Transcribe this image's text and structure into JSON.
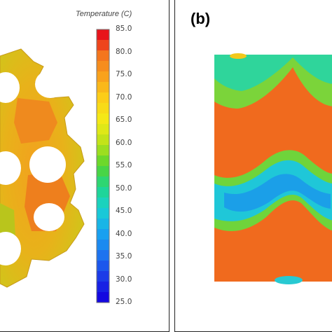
{
  "legend": {
    "title": "Temperature (C)",
    "ticks": [
      "85.0",
      "80.0",
      "75.0",
      "70.0",
      "65.0",
      "60.0",
      "55.0",
      "50.0",
      "45.0",
      "40.0",
      "35.0",
      "30.0",
      "25.0"
    ],
    "colors_top_to_bottom": [
      "#e8151b",
      "#f47a1d",
      "#f9a61c",
      "#fcd217",
      "#f2ec16",
      "#b7e11a",
      "#55d530",
      "#1fd78b",
      "#19cfd4",
      "#17a6f0",
      "#1d78f0",
      "#1b3de8",
      "#1408e0"
    ]
  },
  "panel_b": {
    "label": "(b)"
  }
}
